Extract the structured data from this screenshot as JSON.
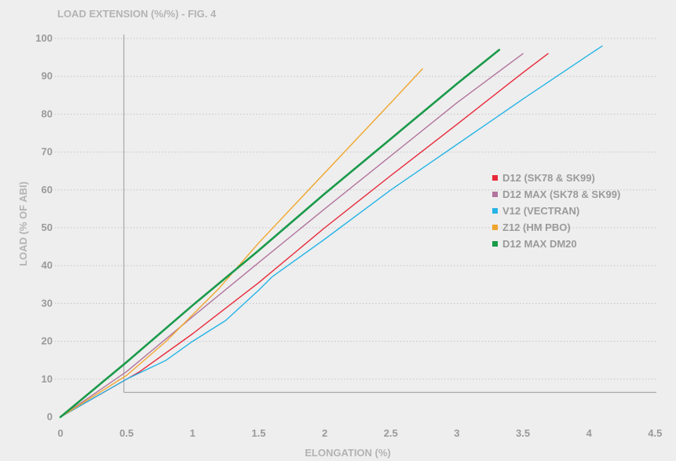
{
  "chart_data": {
    "type": "line",
    "title": "LOAD EXTENSION (%/%) - FIG. 4",
    "xlabel": "ELONGATION (%)",
    "ylabel": "LOAD (% OF ABI)",
    "xlim": [
      0,
      4.5
    ],
    "ylim": [
      0,
      105
    ],
    "xticks": [
      {
        "value": 0,
        "label": "0"
      },
      {
        "value": 0.5,
        "label": "0.5"
      },
      {
        "value": 1,
        "label": "1"
      },
      {
        "value": 1.5,
        "label": "1.5"
      },
      {
        "value": 2,
        "label": "2"
      },
      {
        "value": 2.5,
        "label": "2.5"
      },
      {
        "value": 3,
        "label": "3"
      },
      {
        "value": 3.5,
        "label": "3.5"
      },
      {
        "value": 4,
        "label": "4"
      },
      {
        "value": 4.5,
        "label": "4.5"
      }
    ],
    "yticks": [
      {
        "value": 0,
        "label": "0"
      },
      {
        "value": 10,
        "label": "10"
      },
      {
        "value": 20,
        "label": "20"
      },
      {
        "value": 30,
        "label": "30"
      },
      {
        "value": 40,
        "label": "40"
      },
      {
        "value": 50,
        "label": "50"
      },
      {
        "value": 60,
        "label": "60"
      },
      {
        "value": 70,
        "label": "70"
      },
      {
        "value": 80,
        "label": "80"
      },
      {
        "value": 90,
        "label": "90"
      },
      {
        "value": 100,
        "label": "100"
      }
    ],
    "grid": "horizontal-dotted",
    "legend_position": "right",
    "reference_lines": {
      "x": 0.48,
      "y": 6.5
    },
    "series": [
      {
        "name": "D12 (SK78 & SK99)",
        "color": "#e8293a",
        "x": [
          0,
          0.6,
          1.0,
          1.5,
          2.0,
          2.5,
          3.0,
          3.5,
          3.69
        ],
        "y": [
          0,
          12,
          22,
          35.5,
          50,
          63.8,
          77.3,
          91,
          96
        ]
      },
      {
        "name": "D12 MAX (SK78 & SK99)",
        "color": "#b2749e",
        "x": [
          0,
          0.5,
          1.0,
          1.5,
          2.0,
          2.5,
          3.0,
          3.5
        ],
        "y": [
          0,
          12,
          26.5,
          40.8,
          55,
          69,
          83,
          96
        ]
      },
      {
        "name": "V12 (VECTRAN)",
        "color": "#27b4e6",
        "x": [
          0,
          0.5,
          0.8,
          1.0,
          1.25,
          1.5,
          1.6,
          2.0,
          2.5,
          3.0,
          3.5,
          4.0,
          4.1
        ],
        "y": [
          0,
          10,
          15,
          20,
          25.5,
          33.5,
          37,
          47,
          60,
          72,
          84,
          95.7,
          98
        ]
      },
      {
        "name": "Z12 (HM PBO)",
        "color": "#f0a62e",
        "x": [
          0,
          0.5,
          0.8,
          1.0,
          1.2,
          1.5,
          2.0,
          2.5,
          2.74
        ],
        "y": [
          0,
          11,
          20,
          27,
          34,
          46,
          64.5,
          83,
          92
        ]
      },
      {
        "name": "D12 MAX DM20",
        "color": "#1a9a4a",
        "x": [
          0,
          0.5,
          1.0,
          1.5,
          2.0,
          2.5,
          3.0,
          3.32
        ],
        "y": [
          0,
          14.5,
          29.5,
          44,
          59,
          73.5,
          88,
          97
        ]
      }
    ]
  }
}
